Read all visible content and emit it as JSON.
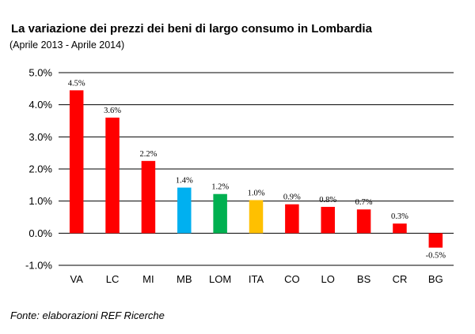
{
  "title": "La variazione dei prezzi dei beni di largo consumo in Lombardia",
  "subtitle": "(Aprile 2013 - Aprile 2014)",
  "source": "Fonte: elaborazioni REF Ricerche",
  "chart_data": {
    "type": "bar",
    "title": "La variazione dei prezzi dei beni di largo consumo in Lombardia",
    "subtitle": "(Aprile 2013 - Aprile 2014)",
    "xlabel": "",
    "ylabel": "",
    "ylim": [
      -1.0,
      5.0
    ],
    "yticks": [
      -1.0,
      0.0,
      1.0,
      2.0,
      3.0,
      4.0,
      5.0
    ],
    "ytick_labels": [
      "-1.0%",
      "0.0%",
      "1.0%",
      "2.0%",
      "3.0%",
      "4.0%",
      "5.0%"
    ],
    "grid": true,
    "legend": "none",
    "categories": [
      "VA",
      "LC",
      "MI",
      "MB",
      "LOM",
      "ITA",
      "CO",
      "LO",
      "BS",
      "CR",
      "BG"
    ],
    "values": [
      4.45,
      3.6,
      2.25,
      1.42,
      1.22,
      1.03,
      0.9,
      0.82,
      0.74,
      0.3,
      -0.45
    ],
    "value_labels": [
      "4.5%",
      "3.6%",
      "2.2%",
      "1.4%",
      "1.2%",
      "1.0%",
      "0.9%",
      "0.8%",
      "0.7%",
      "0.3%",
      "-0.5%"
    ],
    "colors": [
      "#ff0000",
      "#ff0000",
      "#ff0000",
      "#00b0f0",
      "#00b050",
      "#ffc000",
      "#ff0000",
      "#ff0000",
      "#ff0000",
      "#ff0000",
      "#ff0000"
    ]
  }
}
